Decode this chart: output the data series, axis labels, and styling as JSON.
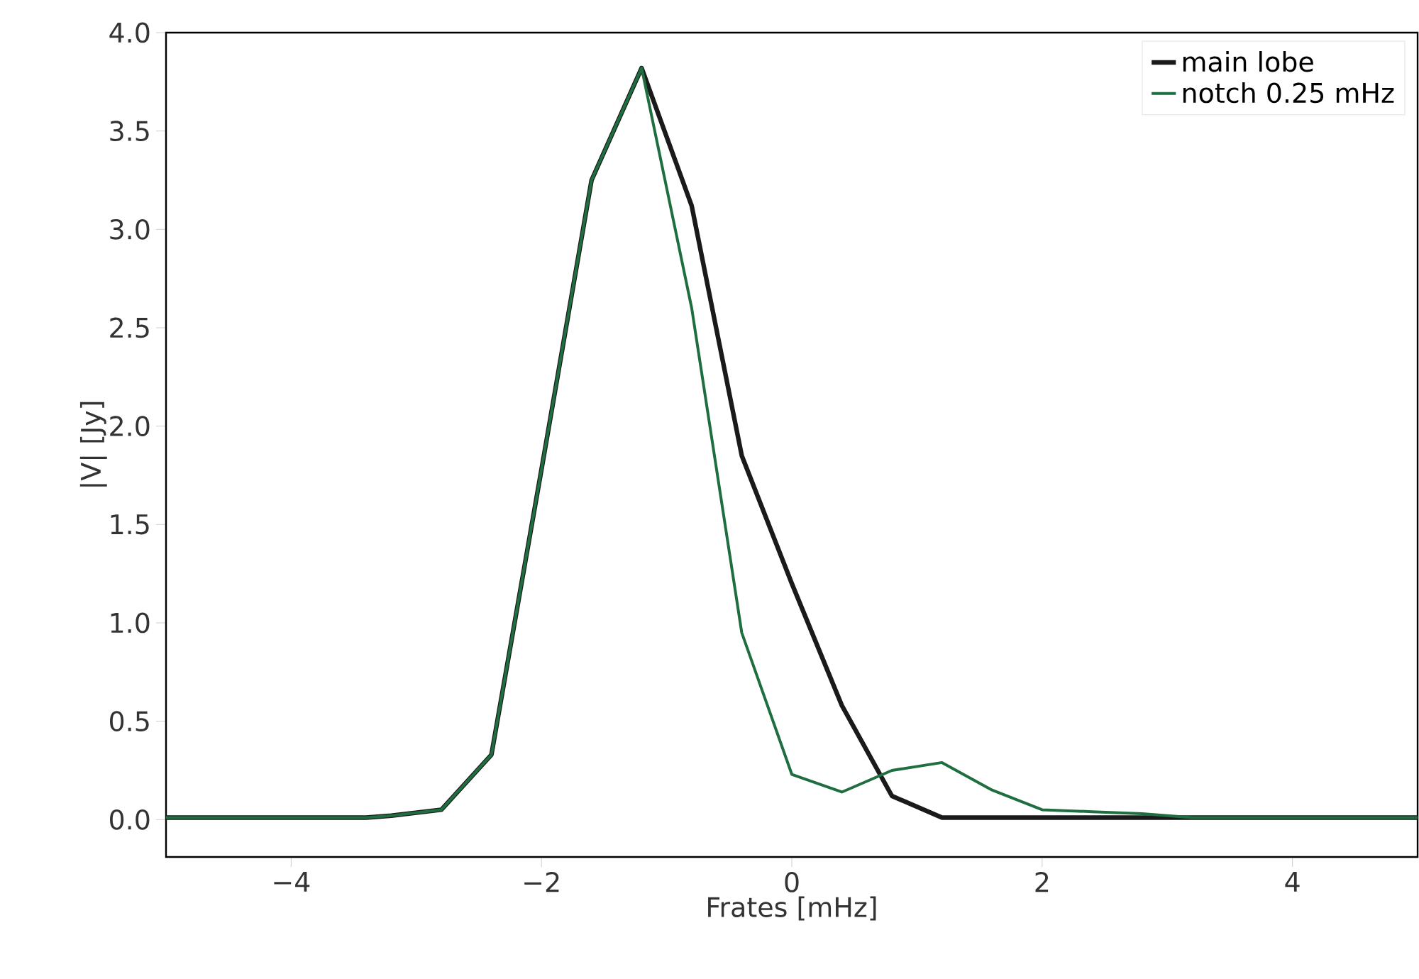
{
  "chart_data": {
    "type": "line",
    "xlabel": "Frates [mHz]",
    "ylabel": "|V| [Jy]",
    "xlim": [
      -5,
      5
    ],
    "ylim": [
      -0.19,
      4.0
    ],
    "xticks": [
      {
        "value": -4,
        "label": "−4"
      },
      {
        "value": -2,
        "label": "−2"
      },
      0,
      2,
      4
    ],
    "yticks": [
      {
        "value": 0,
        "label": "0.0"
      },
      {
        "value": 0.5,
        "label": "0.5"
      },
      {
        "value": 1,
        "label": "1.0"
      },
      {
        "value": 1.5,
        "label": "1.5"
      },
      {
        "value": 2,
        "label": "2.0"
      },
      {
        "value": 2.5,
        "label": "2.5"
      },
      {
        "value": 3,
        "label": "3.0"
      },
      {
        "value": 3.5,
        "label": "3.5"
      },
      {
        "value": 4,
        "label": "4.0"
      }
    ],
    "x": [
      -5,
      -4.6,
      -4.2,
      -3.8,
      -3.4,
      -3.2,
      -2.8,
      -2.4,
      -2.0,
      -1.6,
      -1.2,
      -0.8,
      -0.4,
      0,
      0.4,
      0.8,
      1.2,
      1.6,
      2.0,
      2.4,
      2.8,
      3.2,
      3.6,
      4.0,
      4.4,
      4.8,
      5.0
    ],
    "series": [
      {
        "name": "main lobe",
        "color": "#1a1a1a",
        "values": [
          0.01,
          0.01,
          0.01,
          0.01,
          0.01,
          0.02,
          0.05,
          0.33,
          1.78,
          3.25,
          3.82,
          3.12,
          1.85,
          1.2,
          0.58,
          0.12,
          0.01,
          0.01,
          0.01,
          0.01,
          0.01,
          0.01,
          0.01,
          0.01,
          0.01,
          0.01,
          0.01
        ]
      },
      {
        "name": "notch 0.25 mHz",
        "color": "#1f6e3f",
        "values": [
          0.01,
          0.01,
          0.01,
          0.01,
          0.01,
          0.02,
          0.05,
          0.33,
          1.78,
          3.25,
          3.82,
          2.6,
          0.95,
          0.23,
          0.14,
          0.25,
          0.29,
          0.15,
          0.05,
          0.04,
          0.03,
          0.01,
          0.01,
          0.01,
          0.01,
          0.01,
          0.01
        ]
      }
    ],
    "legend": "top right",
    "grid": false,
    "marker": "none",
    "line_style": "solid"
  }
}
